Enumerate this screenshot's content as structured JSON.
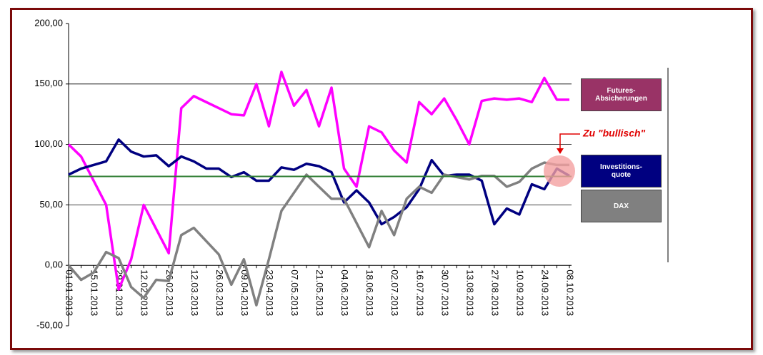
{
  "chart_data": {
    "type": "line",
    "categories": [
      "01.01.2013",
      null,
      "15.01.2013",
      null,
      "29.01.2013",
      null,
      "12.02.2013",
      null,
      "26.02.2013",
      null,
      "12.03.2013",
      null,
      "26.03.2013",
      null,
      "09.04.2013",
      null,
      "23.04.2013",
      null,
      "07.05.2013",
      null,
      "21.05.2013",
      null,
      "04.06.2013",
      null,
      "18.06.2013",
      null,
      "02.07.2013",
      null,
      "16.07.2013",
      null,
      "30.07.2013",
      null,
      "13.08.2013",
      null,
      "27.08.2013",
      null,
      "10.09.2013",
      null,
      "24.09.2013",
      null,
      "08.10.2013"
    ],
    "series": [
      {
        "name": "Futures-\nAbsicherungen",
        "color": "#ff00ff",
        "legend_color": "#993366",
        "values": [
          100,
          90,
          70,
          50,
          -20,
          5,
          50,
          30,
          10,
          130,
          140,
          135,
          130,
          125,
          124,
          150,
          115,
          160,
          132,
          145,
          115,
          147,
          80,
          65,
          115,
          110,
          95,
          85,
          135,
          125,
          138,
          120,
          100,
          136,
          138,
          137,
          138,
          135,
          155,
          137,
          137
        ]
      },
      {
        "name": "Investitions-\nquote",
        "color": "#000080",
        "legend_color": "#000080",
        "values": [
          75,
          80,
          83,
          86,
          104,
          94,
          90,
          91,
          82,
          90,
          86,
          80,
          80,
          73,
          77,
          70,
          70,
          81,
          79,
          84,
          82,
          77,
          52,
          62,
          52,
          34,
          40,
          48,
          63,
          87,
          74,
          75,
          75,
          70,
          34,
          47,
          42,
          67,
          63,
          80,
          74
        ]
      },
      {
        "name": "DAX",
        "color": "#808080",
        "legend_color": "#808080",
        "values": [
          0,
          -12,
          -6,
          11,
          6,
          -18,
          -27,
          -12,
          -13,
          25,
          31,
          20,
          9,
          -16,
          5,
          -33,
          5,
          45,
          60,
          75,
          65,
          55,
          55,
          35,
          15,
          45,
          25,
          55,
          65,
          60,
          75,
          73,
          71,
          74,
          74,
          65,
          69,
          80,
          85,
          83,
          83
        ]
      }
    ],
    "ylim": [
      -50,
      200
    ],
    "yticks": [
      {
        "value": -50,
        "label": "-50,00"
      },
      {
        "value": 0,
        "label": "0,00"
      },
      {
        "value": 50,
        "label": "50,00"
      },
      {
        "value": 100,
        "label": "100,00"
      },
      {
        "value": 150,
        "label": "150,00"
      },
      {
        "value": 200,
        "label": "200,00"
      }
    ],
    "reference_line": {
      "value": 73.5,
      "color": "#2e7d32"
    },
    "annotation": "Zu \"bullisch\"",
    "grid": true
  }
}
